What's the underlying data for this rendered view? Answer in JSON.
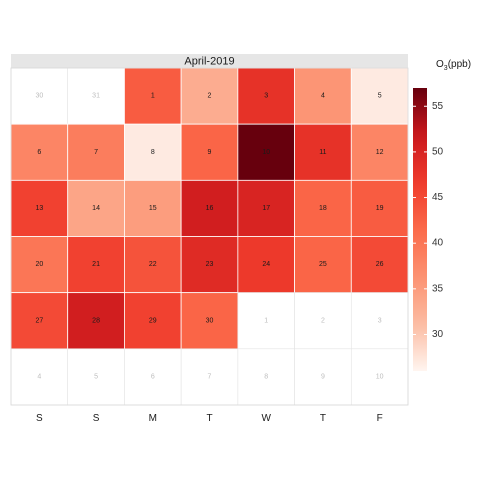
{
  "chart_data": {
    "type": "heatmap",
    "title": "",
    "month_label": "April-2019",
    "weekdays": [
      "S",
      "S",
      "M",
      "T",
      "W",
      "T",
      "F"
    ],
    "colorbar": {
      "title_main": "O",
      "title_sub": "3",
      "title_unit": "(ppb)",
      "min": 26,
      "max": 57,
      "ticks": [
        30,
        35,
        40,
        45,
        50,
        55
      ]
    },
    "weeks": [
      [
        {
          "day": "30",
          "value": null
        },
        {
          "day": "31",
          "value": null
        },
        {
          "day": "1",
          "value": 43
        },
        {
          "day": "2",
          "value": 33
        },
        {
          "day": "3",
          "value": 48
        },
        {
          "day": "4",
          "value": 36
        },
        {
          "day": "5",
          "value": 27
        }
      ],
      [
        {
          "day": "6",
          "value": 38
        },
        {
          "day": "7",
          "value": 39
        },
        {
          "day": "8",
          "value": 27
        },
        {
          "day": "9",
          "value": 42
        },
        {
          "day": "10",
          "value": 57
        },
        {
          "day": "11",
          "value": 48
        },
        {
          "day": "12",
          "value": 38
        }
      ],
      [
        {
          "day": "13",
          "value": 46
        },
        {
          "day": "14",
          "value": 34
        },
        {
          "day": "15",
          "value": 35
        },
        {
          "day": "16",
          "value": 51
        },
        {
          "day": "17",
          "value": 50
        },
        {
          "day": "18",
          "value": 42
        },
        {
          "day": "19",
          "value": 43
        }
      ],
      [
        {
          "day": "20",
          "value": 40
        },
        {
          "day": "21",
          "value": 46
        },
        {
          "day": "22",
          "value": 44
        },
        {
          "day": "23",
          "value": 49
        },
        {
          "day": "24",
          "value": 47
        },
        {
          "day": "25",
          "value": 42
        },
        {
          "day": "26",
          "value": 45
        }
      ],
      [
        {
          "day": "27",
          "value": 45
        },
        {
          "day": "28",
          "value": 51
        },
        {
          "day": "29",
          "value": 46
        },
        {
          "day": "30",
          "value": 42
        },
        {
          "day": "1",
          "value": null
        },
        {
          "day": "2",
          "value": null
        },
        {
          "day": "3",
          "value": null
        }
      ],
      [
        {
          "day": "4",
          "value": null
        },
        {
          "day": "5",
          "value": null
        },
        {
          "day": "6",
          "value": null
        },
        {
          "day": "7",
          "value": null
        },
        {
          "day": "8",
          "value": null
        },
        {
          "day": "9",
          "value": null
        },
        {
          "day": "10",
          "value": null
        }
      ]
    ]
  }
}
